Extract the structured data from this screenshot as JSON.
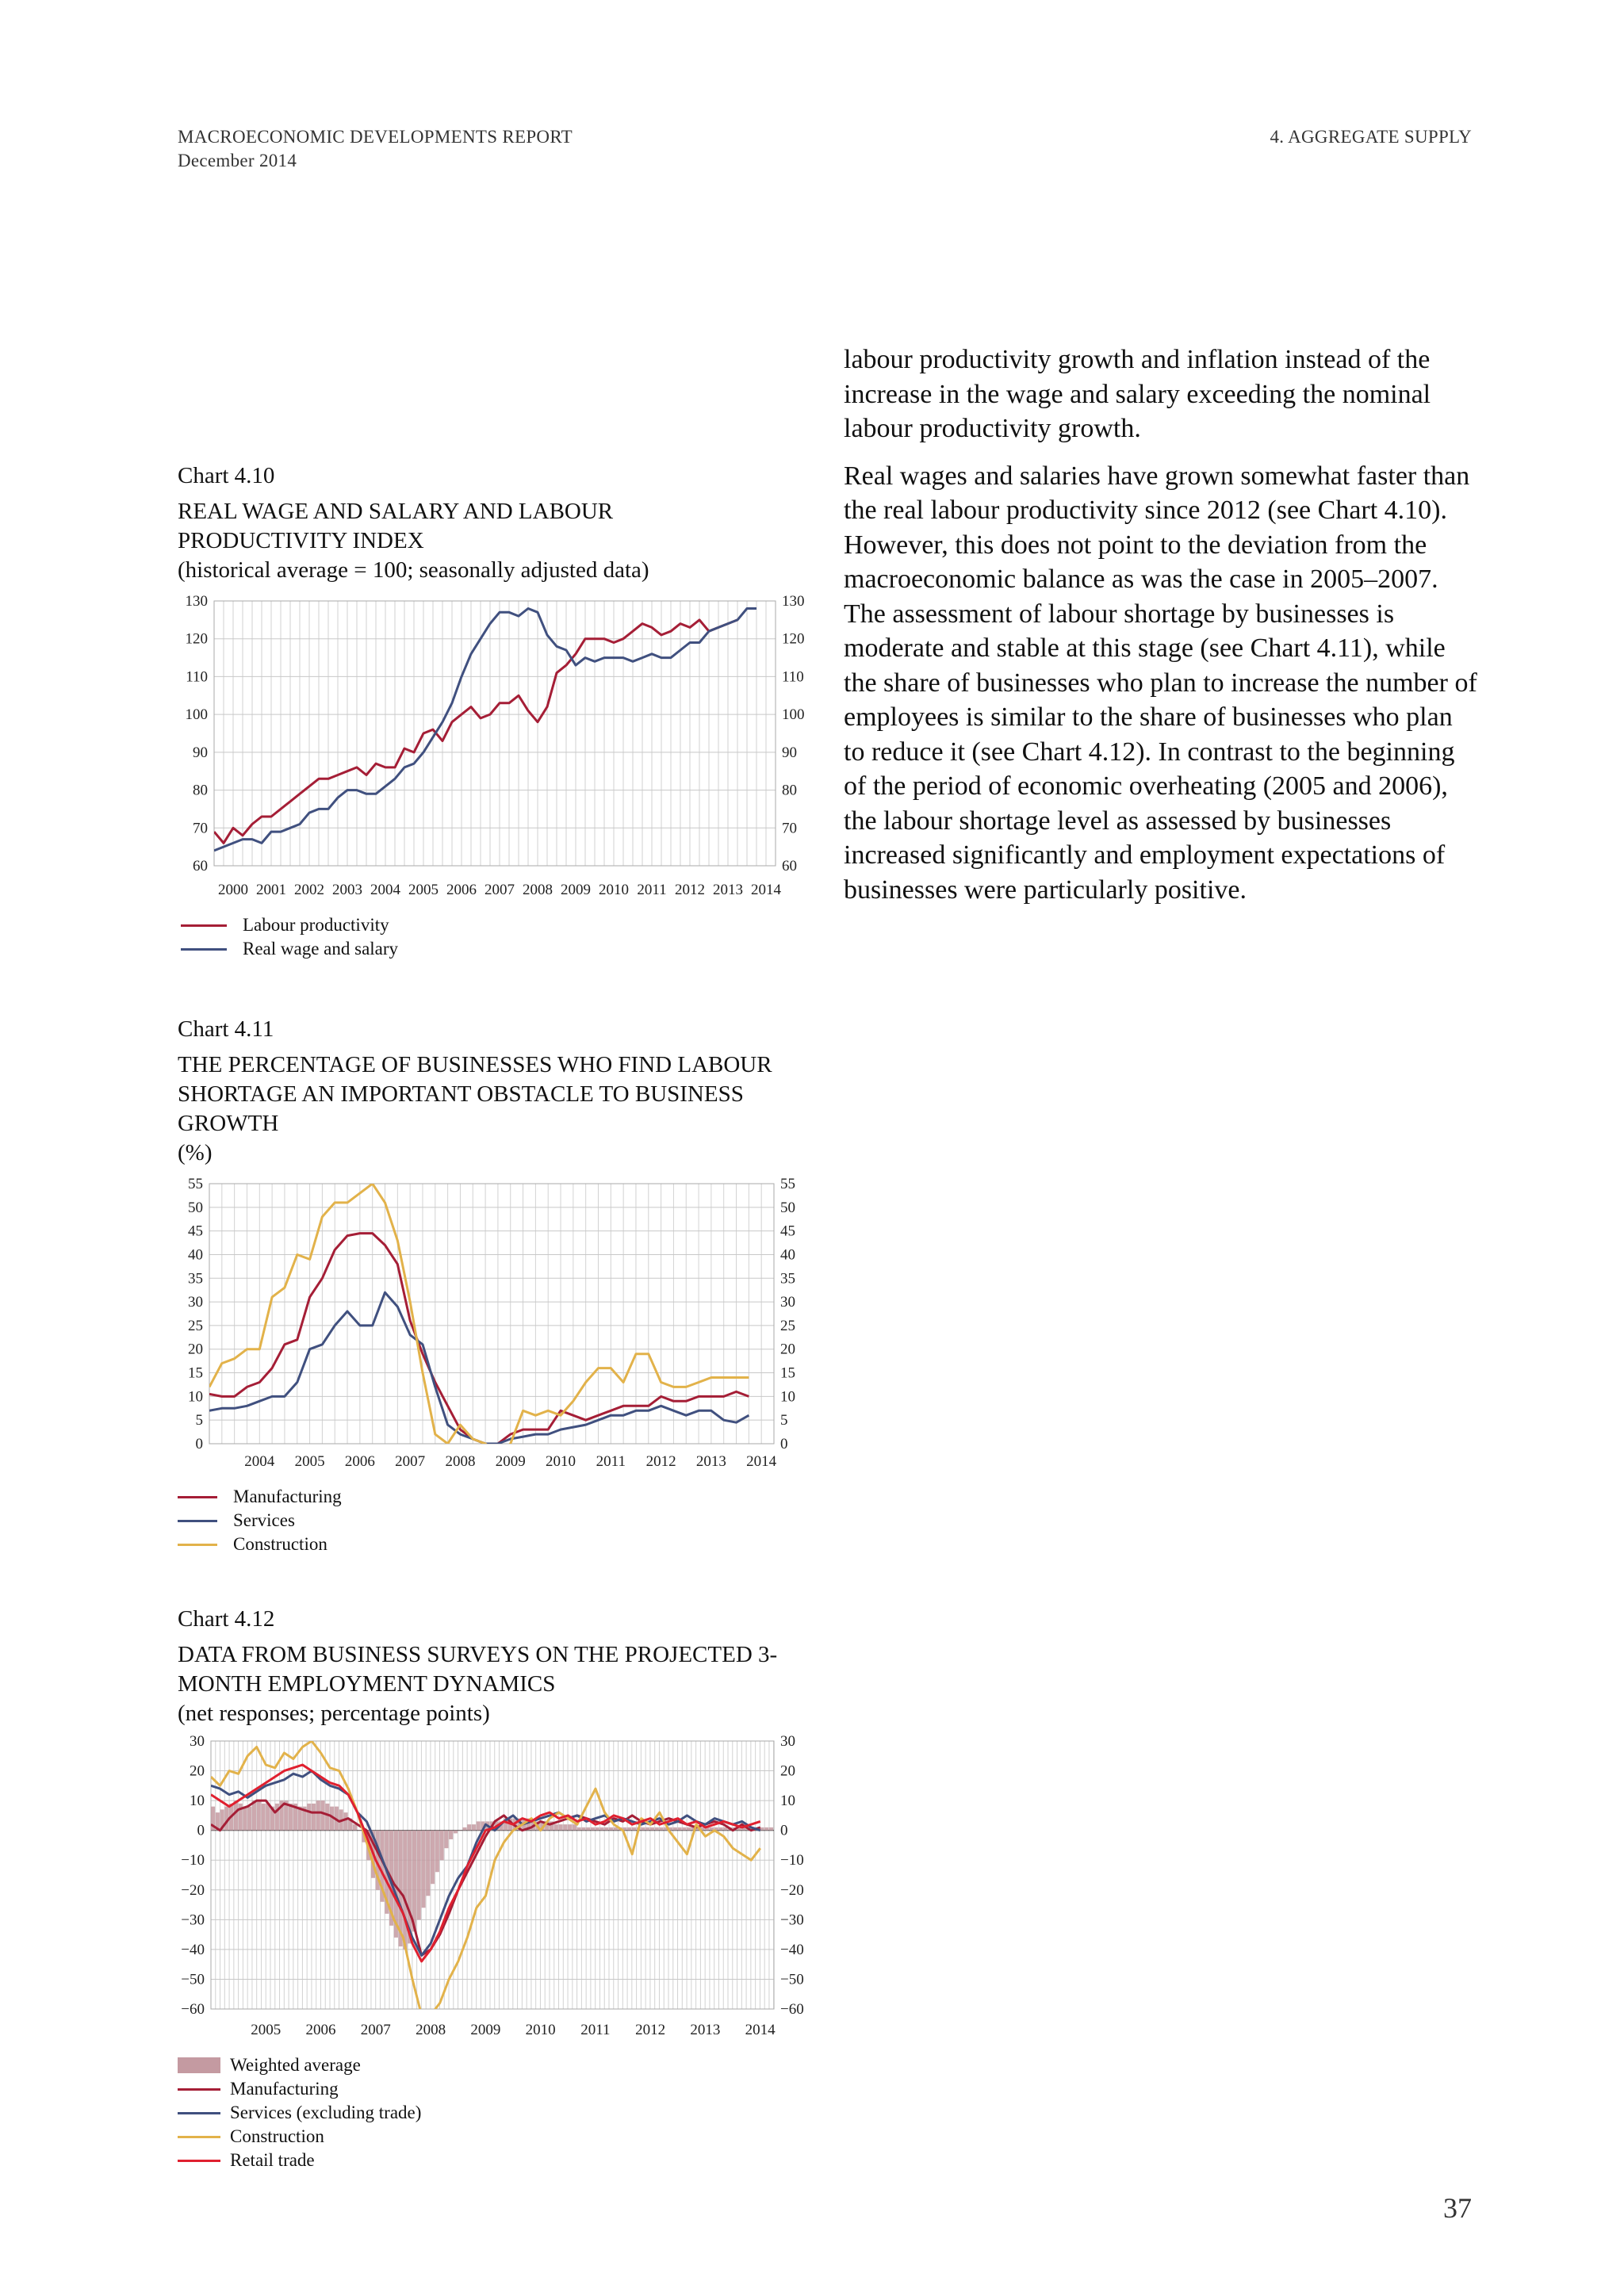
{
  "header": {
    "report": "MACROECONOMIC DEVELOPMENTS REPORT",
    "date": "December 2014",
    "section": "4. AGGREGATE SUPPLY"
  },
  "body_text": {
    "p1": "labour productivity growth and inflation instead of the increase in the wage and salary exceeding the nominal labour productivity growth.",
    "p2": "Real wages and salaries have grown somewhat faster than the real labour productivity since 2012 (see Chart 4.10). However, this does not point to the deviation from the macroeconomic balance as was the case in 2005–2007. The assessment of labour shortage by businesses is moderate and stable at this stage (see Chart 4.11), while the share of businesses who plan to increase the number of employees is similar to the share of businesses who plan to reduce it (see Chart 4.12). In contrast to the beginning of the period of economic overheating (2005 and 2006), the labour shortage level as assessed by businesses increased significantly and employment expectations of businesses were particularly positive."
  },
  "page_number": "37",
  "chart_data": [
    {
      "id": "c410",
      "type": "line",
      "number": "Chart 4.10",
      "title": "REAL WAGE AND SALARY AND LABOUR PRODUCTIVITY INDEX",
      "subtitle": "(historical average = 100; seasonally adjusted data)",
      "x_range": [
        2000,
        2014.75
      ],
      "ylim": [
        60,
        130
      ],
      "yticks": [
        60,
        70,
        80,
        90,
        100,
        110,
        120,
        130
      ],
      "xtick_labels": [
        "2000",
        "2001",
        "2002",
        "2003",
        "2004",
        "2005",
        "2006",
        "2007",
        "2008",
        "2009",
        "2010",
        "2011",
        "2012",
        "2013",
        "2014"
      ],
      "grid": true,
      "legend_position": "bottom",
      "series": [
        {
          "name": "Labour productivity",
          "color": "#a51e36",
          "x_start": 2000.0,
          "x_step": 0.25,
          "values": [
            69,
            66,
            70,
            68,
            71,
            73,
            73,
            75,
            77,
            79,
            81,
            83,
            83,
            84,
            85,
            86,
            84,
            87,
            86,
            86,
            91,
            90,
            95,
            96,
            93,
            98,
            100,
            102,
            99,
            100,
            103,
            103,
            105,
            101,
            98,
            102,
            111,
            113,
            116,
            120,
            120,
            120,
            119,
            120,
            122,
            124,
            123,
            121,
            122,
            124,
            123,
            125,
            122,
            123,
            124,
            125
          ]
        },
        {
          "name": "Real wage and salary",
          "color": "#40507f",
          "x_start": 2000.0,
          "x_step": 0.25,
          "values": [
            64,
            65,
            66,
            67,
            67,
            66,
            69,
            69,
            70,
            71,
            74,
            75,
            75,
            78,
            80,
            80,
            79,
            79,
            81,
            83,
            86,
            87,
            90,
            94,
            98,
            103,
            110,
            116,
            120,
            124,
            127,
            127,
            126,
            128,
            127,
            121,
            118,
            117,
            113,
            115,
            114,
            115,
            115,
            115,
            114,
            115,
            116,
            115,
            115,
            117,
            119,
            119,
            122,
            123,
            124,
            125,
            128,
            128
          ]
        }
      ]
    },
    {
      "id": "c411",
      "type": "line",
      "number": "Chart 4.11",
      "title": "THE PERCENTAGE OF BUSINESSES WHO FIND LABOUR SHORTAGE AN IMPORTANT OBSTACLE TO BUSINESS GROWTH",
      "subtitle": "(%)",
      "x_range": [
        2003.5,
        2014.75
      ],
      "ylim": [
        0,
        55
      ],
      "yticks": [
        0,
        5,
        10,
        15,
        20,
        25,
        30,
        35,
        40,
        45,
        50,
        55
      ],
      "xtick_labels": [
        "2004",
        "2005",
        "2006",
        "2007",
        "2008",
        "2009",
        "2010",
        "2011",
        "2012",
        "2013",
        "2014"
      ],
      "grid": true,
      "legend_position": "bottom",
      "series": [
        {
          "name": "Manufacturing",
          "color": "#a51e36",
          "x_start": 2003.5,
          "x_step": 0.25,
          "values": [
            10.5,
            10,
            10,
            12,
            13,
            16,
            21,
            22,
            31,
            35,
            41,
            44,
            44.5,
            44.5,
            42,
            38,
            26,
            19,
            13,
            8,
            3,
            1,
            0,
            0,
            2,
            3,
            3,
            3,
            7,
            6,
            5,
            6,
            7,
            8,
            8,
            8,
            10,
            9,
            9,
            10,
            10,
            10,
            11,
            10
          ]
        },
        {
          "name": "Services",
          "color": "#40507f",
          "x_start": 2003.5,
          "x_step": 0.25,
          "values": [
            7,
            7.5,
            7.5,
            8,
            9,
            10,
            10,
            13,
            20,
            21,
            25,
            28,
            25,
            25,
            32,
            29,
            23,
            21,
            12,
            4,
            2,
            1,
            0,
            0,
            1,
            1.5,
            2,
            2,
            3,
            3.5,
            4,
            5,
            6,
            6,
            7,
            7,
            8,
            7,
            6,
            7,
            7,
            5,
            4.5,
            6
          ]
        },
        {
          "name": "Construction",
          "color": "#e2b24a",
          "x_start": 2003.5,
          "x_step": 0.25,
          "values": [
            12,
            17,
            18,
            20,
            20,
            31,
            33,
            40,
            39,
            48,
            51,
            51,
            53,
            55,
            51,
            43,
            30,
            15,
            2,
            0,
            4,
            1,
            0,
            -2,
            0,
            7,
            6,
            7,
            6,
            9,
            13,
            16,
            16,
            13,
            19,
            19,
            13,
            12,
            12,
            13,
            14,
            14,
            14,
            14
          ]
        }
      ]
    },
    {
      "id": "c412",
      "type": "line",
      "number": "Chart 4.12",
      "title": "DATA FROM BUSINESS SURVEYS ON THE PROJECTED 3-MONTH EMPLOYMENT DYNAMICS",
      "subtitle": "(net responses; percentage points)",
      "x_range": [
        2004.5,
        2014.75
      ],
      "ylim": [
        -60,
        30
      ],
      "yticks": [
        -60,
        -50,
        -40,
        -30,
        -20,
        -10,
        0,
        10,
        20,
        30
      ],
      "ytick_labels": [
        "−60",
        "−50",
        "−40",
        "−30",
        "−20",
        "−10",
        "0",
        "10",
        "20",
        "30"
      ],
      "xtick_labels": [
        "2005",
        "2006",
        "2007",
        "2008",
        "2009",
        "2010",
        "2011",
        "2012",
        "2013",
        "2014"
      ],
      "grid": true,
      "legend_position": "bottom",
      "series": [
        {
          "name": "Weighted average",
          "type": "bar",
          "color": "#c49aa1",
          "x_start": 2004.5,
          "x_step": 0.0833,
          "values": [
            8,
            6,
            7,
            8,
            9,
            10,
            9,
            8,
            8,
            10,
            10,
            9,
            9,
            8,
            9,
            10,
            10,
            9,
            9,
            8,
            8,
            9,
            9,
            10,
            10,
            9,
            8,
            8,
            7,
            6,
            4,
            2,
            0,
            -4,
            -10,
            -16,
            -20,
            -24,
            -28,
            -32,
            -36,
            -39,
            -40,
            -38,
            -34,
            -30,
            -26,
            -22,
            -18,
            -14,
            -10,
            -6,
            -3,
            -1,
            0,
            1,
            2,
            2,
            3,
            3,
            3,
            3,
            3,
            3,
            4,
            4,
            4,
            4,
            4,
            4,
            3,
            3,
            3,
            3,
            3,
            2,
            2,
            2,
            2,
            2,
            1,
            1,
            1,
            1,
            1,
            1,
            1,
            1,
            1,
            1,
            1,
            1,
            1,
            1,
            1,
            1,
            1,
            1,
            1,
            1,
            1,
            1,
            1,
            1,
            1,
            1,
            1,
            1,
            1,
            1,
            1,
            1,
            1,
            1,
            1,
            1,
            1,
            1,
            1,
            1,
            1,
            1,
            1
          ]
        },
        {
          "name": "Manufacturing",
          "color": "#a51e36",
          "x_start": 2004.5,
          "x_step": 0.1667,
          "values": [
            2,
            0,
            4,
            7,
            8,
            10,
            10,
            6,
            9,
            8,
            7,
            6,
            6,
            5,
            3,
            4,
            2,
            0,
            -6,
            -12,
            -18,
            -22,
            -30,
            -42,
            -40,
            -35,
            -28,
            -20,
            -14,
            -8,
            -2,
            3,
            5,
            2,
            0,
            1,
            3,
            2,
            3,
            4,
            5,
            4,
            3,
            2,
            4,
            3,
            5,
            3,
            2,
            3,
            4,
            3,
            2,
            1,
            2,
            3,
            2,
            0,
            2,
            0,
            1
          ]
        },
        {
          "name": "Services (excluding trade)",
          "color": "#40507f",
          "x_start": 2004.5,
          "x_step": 0.1667,
          "values": [
            15,
            14,
            12,
            13,
            11,
            13,
            15,
            16,
            17,
            19,
            18,
            20,
            17,
            15,
            14,
            12,
            6,
            3,
            -4,
            -12,
            -20,
            -28,
            -36,
            -42,
            -38,
            -30,
            -22,
            -16,
            -12,
            -4,
            2,
            0,
            3,
            5,
            2,
            3,
            4,
            5,
            6,
            4,
            5,
            3,
            4,
            5,
            3,
            4,
            3,
            2,
            3,
            4,
            2,
            3,
            5,
            3,
            2,
            4,
            3,
            2,
            3,
            1,
            0
          ]
        },
        {
          "name": "Construction",
          "color": "#e2b24a",
          "x_start": 2004.5,
          "x_step": 0.1667,
          "values": [
            18,
            15,
            20,
            19,
            25,
            28,
            22,
            21,
            26,
            24,
            28,
            30,
            26,
            21,
            20,
            14,
            6,
            -4,
            -14,
            -22,
            -30,
            -36,
            -50,
            -62,
            -62,
            -58,
            -50,
            -44,
            -36,
            -26,
            -22,
            -10,
            -4,
            0,
            2,
            4,
            0,
            4,
            6,
            4,
            2,
            8,
            14,
            6,
            2,
            0,
            -8,
            4,
            2,
            6,
            0,
            -4,
            -8,
            2,
            -2,
            0,
            -2,
            -6,
            -8,
            -10,
            -6
          ]
        },
        {
          "name": "Retail trade",
          "color": "#e0202f",
          "x_start": 2004.5,
          "x_step": 0.1667,
          "values": [
            12,
            10,
            8,
            10,
            12,
            14,
            16,
            18,
            20,
            21,
            22,
            20,
            18,
            16,
            15,
            12,
            6,
            -2,
            -10,
            -16,
            -22,
            -28,
            -38,
            -44,
            -40,
            -34,
            -26,
            -20,
            -12,
            -6,
            0,
            1,
            3,
            2,
            4,
            3,
            5,
            6,
            4,
            5,
            3,
            4,
            2,
            3,
            5,
            4,
            2,
            3,
            4,
            2,
            3,
            4,
            2,
            3,
            1,
            2,
            3,
            2,
            1,
            2,
            3
          ]
        }
      ]
    }
  ]
}
